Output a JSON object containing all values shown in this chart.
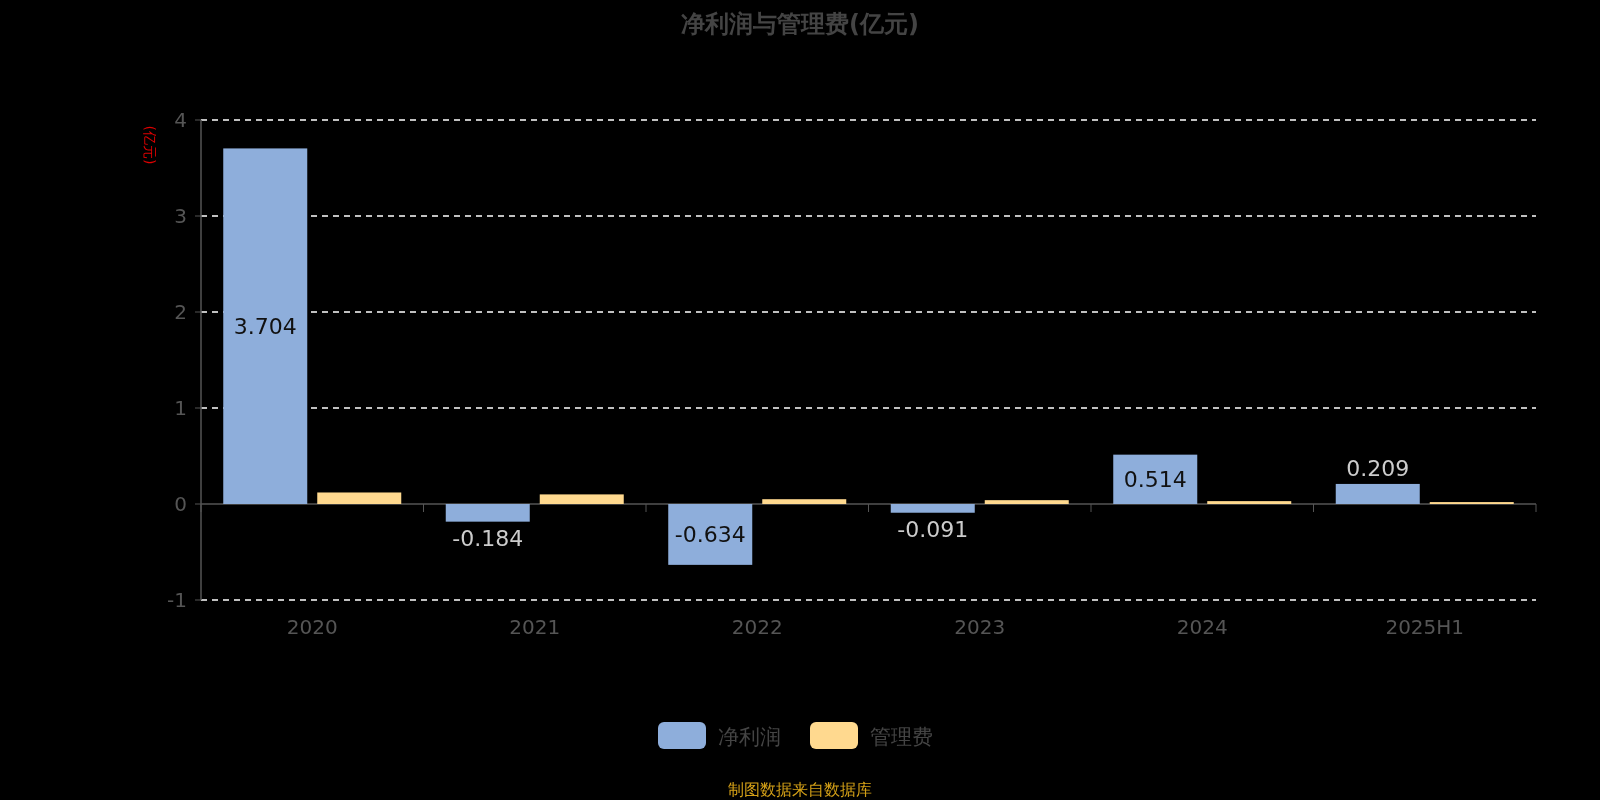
{
  "chart_data": {
    "type": "bar",
    "title": "净利润与管理费(亿元)",
    "ylabel": "(亿元)",
    "categories": [
      "2020",
      "2021",
      "2022",
      "2023",
      "2024",
      "2025H1"
    ],
    "series": [
      {
        "name": "净利润",
        "color": "#8eaedb",
        "values": [
          3.704,
          -0.184,
          -0.634,
          -0.091,
          0.514,
          0.209
        ],
        "value_labels": [
          "3.704",
          "-0.184",
          "-0.634",
          "-0.091",
          "0.514",
          "0.209"
        ]
      },
      {
        "name": "管理费",
        "color": "#ffd98f",
        "values": [
          0.12,
          0.1,
          0.05,
          0.04,
          0.03,
          0.02
        ]
      }
    ],
    "ylim": [
      -1,
      4
    ],
    "yticks": [
      -1,
      0,
      1,
      2,
      3,
      4
    ],
    "grid": "y",
    "legend": "bottom",
    "annotations": [
      "制图数据来自数据库"
    ]
  }
}
